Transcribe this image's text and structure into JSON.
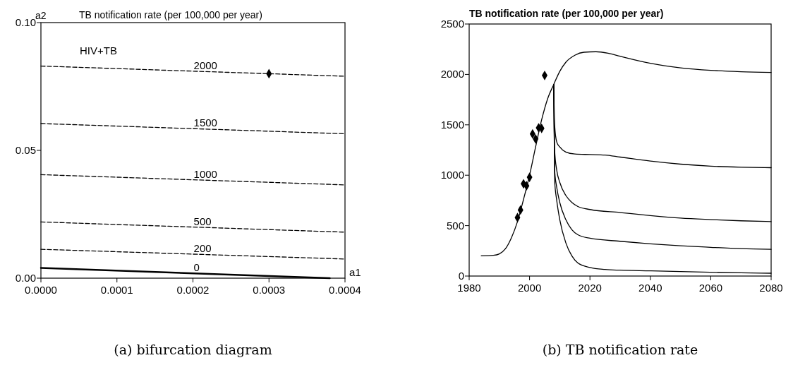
{
  "chart_data": [
    {
      "type": "line",
      "title": "TB notification rate (per 100,000 per year)",
      "xlabel": "a1",
      "ylabel": "a2",
      "annotations": [
        "HIV+TB",
        "(a) bifurcation diagram"
      ],
      "xlim": [
        0,
        0.0004
      ],
      "xticks": [
        {
          "value": 0,
          "label": "0.0000"
        },
        {
          "value": 0.0001,
          "label": "0.0001"
        },
        {
          "value": 0.0002,
          "label": "0.0002"
        },
        {
          "value": 0.0003,
          "label": "0.0003"
        },
        {
          "value": 0.0004,
          "label": "0.0004"
        }
      ],
      "ylim": [
        0,
        0.1
      ],
      "yticks": [
        {
          "value": 0,
          "label": "0.00"
        },
        {
          "value": 0.05,
          "label": "0.05"
        },
        {
          "value": 0.1,
          "label": "0.10"
        }
      ],
      "grid": false,
      "series": [
        {
          "name": "2000",
          "color": "#000000",
          "line_style": "dashed",
          "x": [
            0,
            0.0004
          ],
          "values": [
            0.083,
            0.079
          ]
        },
        {
          "name": "1500",
          "color": "#000000",
          "line_style": "dashed",
          "x": [
            0,
            0.0004
          ],
          "values": [
            0.0605,
            0.0565
          ]
        },
        {
          "name": "1000",
          "color": "#000000",
          "line_style": "dashed",
          "x": [
            0,
            0.0004
          ],
          "values": [
            0.0405,
            0.0365
          ]
        },
        {
          "name": "500",
          "color": "#000000",
          "line_style": "dashed",
          "x": [
            0,
            0.0004
          ],
          "values": [
            0.022,
            0.018
          ]
        },
        {
          "name": "200",
          "color": "#000000",
          "line_style": "dashed",
          "x": [
            0,
            0.0004
          ],
          "values": [
            0.0113,
            0.0075
          ]
        },
        {
          "name": "0",
          "color": "#000000",
          "line_style": "solid",
          "x": [
            0,
            0.00038
          ],
          "values": [
            0.004,
            0
          ]
        },
        {
          "type": "scatter",
          "color": "#000000",
          "marker": "diamond",
          "x": [
            0.0003
          ],
          "values": [
            0.08
          ]
        }
      ]
    },
    {
      "type": "line",
      "title": "TB notification rate (per 100,000 per year)",
      "annotations": [
        "(b) TB notification rate"
      ],
      "xlim": [
        1980,
        2080
      ],
      "xticks": [
        1980,
        2000,
        2020,
        2040,
        2060,
        2080
      ],
      "ylim": [
        0,
        2500
      ],
      "yticks": [
        0,
        500,
        1000,
        1500,
        2000,
        2500
      ],
      "grid": false,
      "series": [
        {
          "color": "#000000",
          "x": [
            1984,
            1988,
            1990,
            1992,
            1994,
            1996,
            1998,
            2000,
            2002,
            2004,
            2006,
            2008,
            2010,
            2012,
            2015,
            2018,
            2022,
            2026,
            2030,
            2040,
            2050,
            2060,
            2070,
            2080
          ],
          "values": [
            200,
            205,
            220,
            270,
            380,
            540,
            760,
            1000,
            1280,
            1550,
            1760,
            1900,
            2030,
            2120,
            2190,
            2220,
            2225,
            2210,
            2180,
            2110,
            2065,
            2040,
            2027,
            2020
          ]
        },
        {
          "color": "#000000",
          "x": [
            2008,
            2008.3,
            2009,
            2010,
            2012,
            2015,
            2020,
            2025,
            2030,
            2040,
            2050,
            2060,
            2070,
            2080
          ],
          "values": [
            1900,
            1500,
            1330,
            1280,
            1230,
            1210,
            1205,
            1200,
            1180,
            1140,
            1110,
            1090,
            1080,
            1075
          ]
        },
        {
          "color": "#000000",
          "x": [
            2008,
            2008.3,
            2009,
            2010,
            2012,
            2014,
            2016,
            2020,
            2030,
            2040,
            2050,
            2060,
            2070,
            2080
          ],
          "values": [
            1900,
            1250,
            1050,
            930,
            800,
            730,
            690,
            660,
            630,
            600,
            575,
            560,
            548,
            540
          ]
        },
        {
          "color": "#000000",
          "x": [
            2008,
            2008.3,
            2009,
            2010,
            2012,
            2014,
            2016,
            2020,
            2030,
            2040,
            2050,
            2060,
            2070,
            2080
          ],
          "values": [
            1900,
            1050,
            880,
            730,
            560,
            460,
            410,
            375,
            345,
            320,
            300,
            285,
            272,
            265
          ]
        },
        {
          "color": "#000000",
          "x": [
            2008,
            2008.3,
            2009,
            2010,
            2012,
            2014,
            2016,
            2020,
            2025,
            2030,
            2040,
            2050,
            2060,
            2070,
            2080
          ],
          "values": [
            1900,
            950,
            750,
            560,
            330,
            200,
            130,
            85,
            65,
            58,
            52,
            45,
            38,
            32,
            28
          ]
        },
        {
          "type": "scatter",
          "color": "#000000",
          "marker": "diamond",
          "x": [
            1996,
            1997,
            1998,
            1999,
            2000,
            2001,
            2002,
            2003,
            2004,
            2005
          ],
          "values": [
            580,
            655,
            915,
            895,
            980,
            1410,
            1360,
            1470,
            1465,
            1990
          ]
        }
      ]
    }
  ]
}
